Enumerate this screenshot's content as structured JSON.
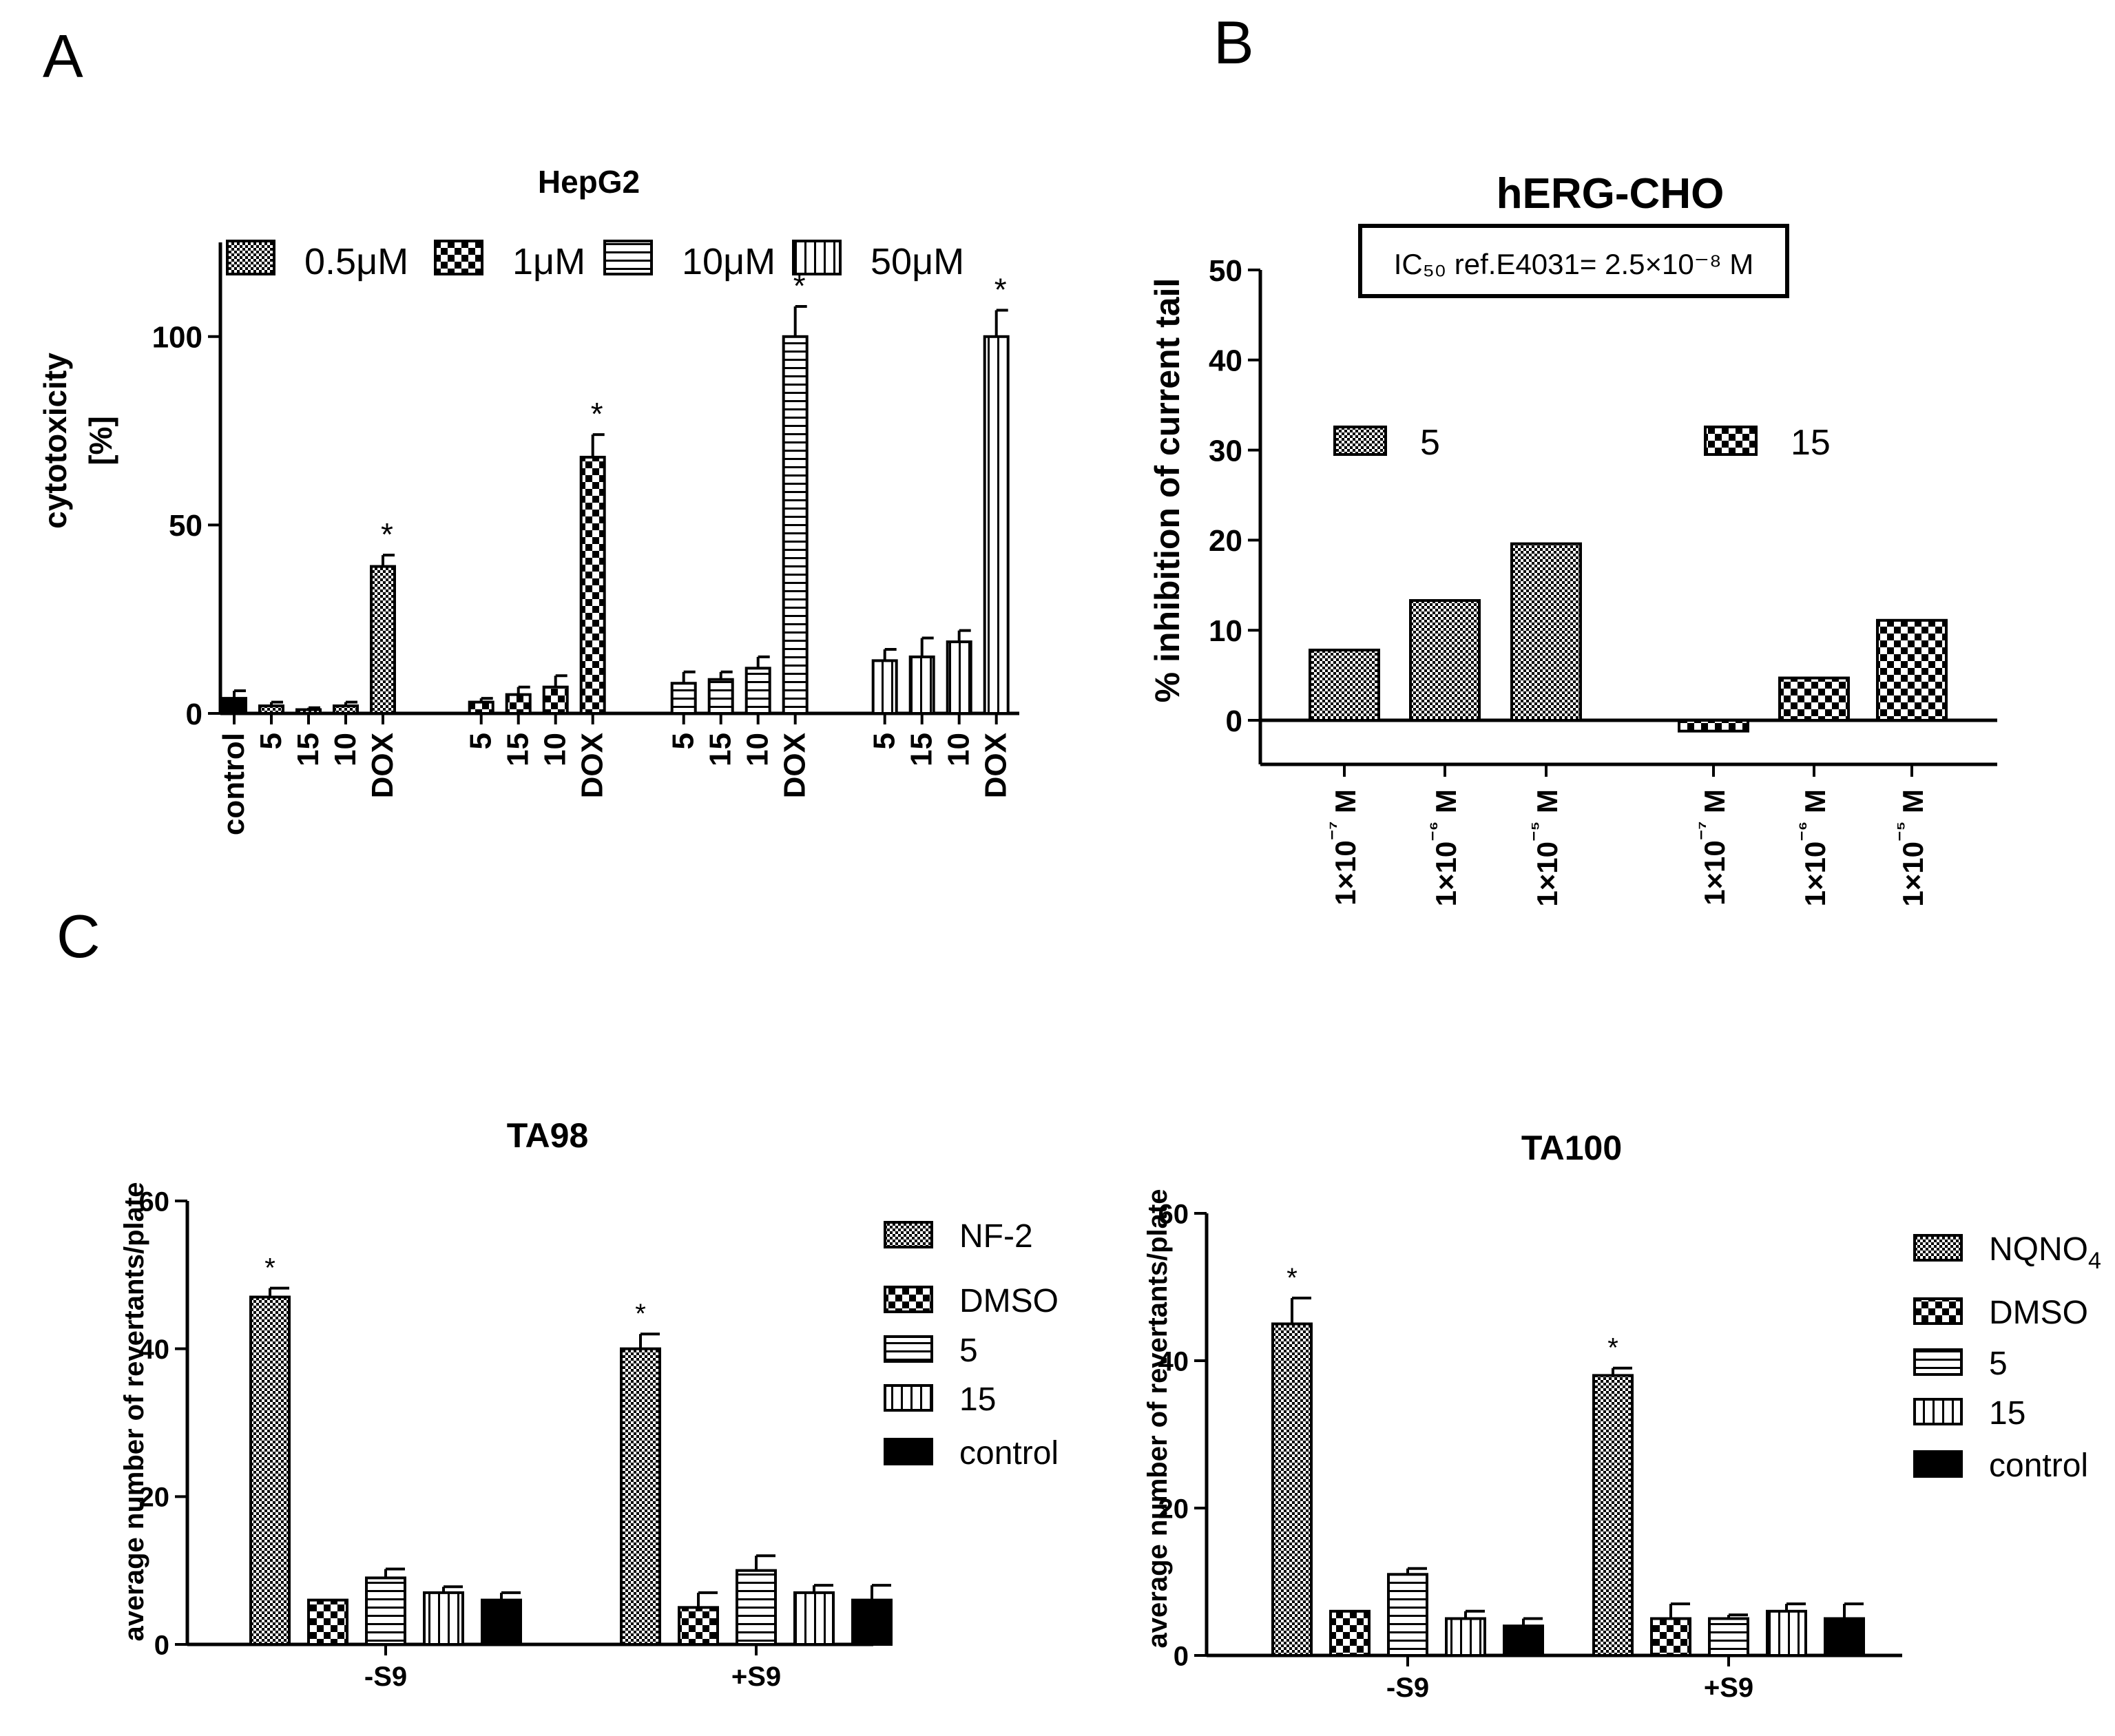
{
  "panels": {
    "a": "A",
    "b": "B",
    "c": "C"
  },
  "colors": {
    "ink": "#000000",
    "background": "#ffffff"
  },
  "chart_data": [
    {
      "id": "hepg2",
      "type": "bar",
      "title": "HepG2",
      "ylabel": "cytotoxicity\n[%]",
      "xlabel": "",
      "ylim": [
        0,
        125
      ],
      "yticks": [
        0,
        50,
        100
      ],
      "legend_position": "top",
      "legend": [
        {
          "label": "0.5μM",
          "pattern": "fine-check"
        },
        {
          "label": "1μM",
          "pattern": "checker"
        },
        {
          "label": "10μM",
          "pattern": "horizontal"
        },
        {
          "label": "50μM",
          "pattern": "vertical"
        }
      ],
      "groups": [
        {
          "bars": [
            {
              "label": "control",
              "value": 4,
              "error": 2,
              "pattern": "solid"
            },
            {
              "label": "5",
              "value": 2,
              "error": 1,
              "pattern": "fine-check"
            },
            {
              "label": "15",
              "value": 1,
              "error": 0.5,
              "pattern": "fine-check"
            },
            {
              "label": "10",
              "value": 2,
              "error": 1,
              "pattern": "fine-check"
            },
            {
              "label": "DOX",
              "value": 39,
              "error": 3,
              "pattern": "fine-check",
              "sig": "*"
            }
          ]
        },
        {
          "bars": [
            {
              "label": "5",
              "value": 3,
              "error": 1,
              "pattern": "checker"
            },
            {
              "label": "15",
              "value": 5,
              "error": 2,
              "pattern": "checker"
            },
            {
              "label": "10",
              "value": 7,
              "error": 3,
              "pattern": "checker"
            },
            {
              "label": "DOX",
              "value": 68,
              "error": 6,
              "pattern": "checker",
              "sig": "*"
            }
          ]
        },
        {
          "bars": [
            {
              "label": "5",
              "value": 8,
              "error": 3,
              "pattern": "horizontal"
            },
            {
              "label": "15",
              "value": 9,
              "error": 2,
              "pattern": "horizontal"
            },
            {
              "label": "10",
              "value": 12,
              "error": 3,
              "pattern": "horizontal"
            },
            {
              "label": "DOX",
              "value": 100,
              "error": 8,
              "pattern": "horizontal",
              "sig": "*"
            }
          ]
        },
        {
          "bars": [
            {
              "label": "5",
              "value": 14,
              "error": 3,
              "pattern": "vertical"
            },
            {
              "label": "15",
              "value": 15,
              "error": 5,
              "pattern": "vertical"
            },
            {
              "label": "10",
              "value": 19,
              "error": 3,
              "pattern": "vertical"
            },
            {
              "label": "DOX",
              "value": 100,
              "error": 7,
              "pattern": "vertical",
              "sig": "*"
            }
          ]
        }
      ]
    },
    {
      "id": "herg",
      "type": "bar",
      "title": "hERG-CHO",
      "annotation": "IC₅₀ ref.E4031= 2.5×10⁻⁸ M",
      "ylabel": "% inhibition of current tail",
      "xlabel": "",
      "ylim": [
        -5,
        50
      ],
      "yticks": [
        0,
        10,
        20,
        30,
        40,
        50
      ],
      "legend_position": "inside-top",
      "legend": [
        {
          "label": "5",
          "pattern": "fine-check"
        },
        {
          "label": "15",
          "pattern": "checker"
        }
      ],
      "groups": [
        {
          "bars": [
            {
              "label": "1×10⁻⁷ M",
              "value": 7.8,
              "pattern": "fine-check"
            },
            {
              "label": "1×10⁻⁶ M",
              "value": 13.3,
              "pattern": "fine-check"
            },
            {
              "label": "1×10⁻⁵ M",
              "value": 19.6,
              "pattern": "fine-check"
            }
          ]
        },
        {
          "bars": [
            {
              "label": "1×10⁻⁷ M",
              "value": -1.2,
              "pattern": "checker"
            },
            {
              "label": "1×10⁻⁶ M",
              "value": 4.7,
              "pattern": "checker"
            },
            {
              "label": "1×10⁻⁵ M",
              "value": 11.1,
              "pattern": "checker"
            }
          ]
        }
      ]
    },
    {
      "id": "ta98",
      "type": "bar",
      "title": "TA98",
      "ylabel": "average number of revertants/plate",
      "xlabel": "",
      "ylim": [
        0,
        60
      ],
      "yticks": [
        0,
        20,
        40,
        60
      ],
      "legend_position": "right",
      "legend": [
        {
          "label": "NF-2",
          "pattern": "fine-check"
        },
        {
          "label": "DMSO",
          "pattern": "checker"
        },
        {
          "label": "5",
          "pattern": "horizontal"
        },
        {
          "label": "15",
          "pattern": "vertical"
        },
        {
          "label": "control",
          "pattern": "solid"
        }
      ],
      "groups": [
        {
          "label": "-S9",
          "bars": [
            {
              "label": "NF-2",
              "value": 47,
              "error": 1.2,
              "pattern": "fine-check",
              "sig": "*"
            },
            {
              "label": "DMSO",
              "value": 6,
              "error": 0,
              "pattern": "checker"
            },
            {
              "label": "5",
              "value": 9,
              "error": 1.2,
              "pattern": "horizontal"
            },
            {
              "label": "15",
              "value": 7,
              "error": 0.8,
              "pattern": "vertical"
            },
            {
              "label": "control",
              "value": 6,
              "error": 1,
              "pattern": "solid"
            }
          ]
        },
        {
          "label": "+S9",
          "bars": [
            {
              "label": "NF-2",
              "value": 40,
              "error": 2,
              "pattern": "fine-check",
              "sig": "*"
            },
            {
              "label": "DMSO",
              "value": 5,
              "error": 2,
              "pattern": "checker"
            },
            {
              "label": "5",
              "value": 10,
              "error": 2,
              "pattern": "horizontal"
            },
            {
              "label": "15",
              "value": 7,
              "error": 1,
              "pattern": "vertical"
            },
            {
              "label": "control",
              "value": 6,
              "error": 2,
              "pattern": "solid"
            }
          ]
        }
      ]
    },
    {
      "id": "ta100",
      "type": "bar",
      "title": "TA100",
      "ylabel": "average number of revertants/plate",
      "xlabel": "",
      "ylim": [
        0,
        60
      ],
      "yticks": [
        0,
        20,
        40,
        60
      ],
      "legend_position": "right",
      "legend": [
        {
          "label": "NQNO",
          "sub": "4",
          "pattern": "fine-check"
        },
        {
          "label": "DMSO",
          "pattern": "checker"
        },
        {
          "label": "5",
          "pattern": "horizontal"
        },
        {
          "label": "15",
          "pattern": "vertical"
        },
        {
          "label": "control",
          "pattern": "solid"
        }
      ],
      "groups": [
        {
          "label": "-S9",
          "bars": [
            {
              "label": "NQNO4",
              "value": 45,
              "error": 3.5,
              "pattern": "fine-check",
              "sig": "*"
            },
            {
              "label": "DMSO",
              "value": 6,
              "error": 0,
              "pattern": "checker"
            },
            {
              "label": "5",
              "value": 11,
              "error": 0.8,
              "pattern": "horizontal"
            },
            {
              "label": "15",
              "value": 5,
              "error": 1,
              "pattern": "vertical"
            },
            {
              "label": "control",
              "value": 4,
              "error": 1,
              "pattern": "solid"
            }
          ]
        },
        {
          "label": "+S9",
          "bars": [
            {
              "label": "NQNO4",
              "value": 38,
              "error": 1,
              "pattern": "fine-check",
              "sig": "*"
            },
            {
              "label": "DMSO",
              "value": 5,
              "error": 2,
              "pattern": "checker"
            },
            {
              "label": "5",
              "value": 5,
              "error": 0.5,
              "pattern": "horizontal"
            },
            {
              "label": "15",
              "value": 6,
              "error": 1,
              "pattern": "vertical"
            },
            {
              "label": "control",
              "value": 5,
              "error": 2,
              "pattern": "solid"
            }
          ]
        }
      ]
    }
  ]
}
